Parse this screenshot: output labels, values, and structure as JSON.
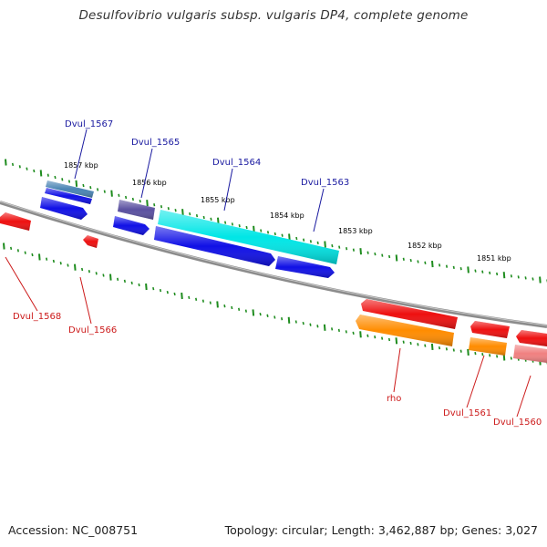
{
  "title": "Desulfovibrio vulgaris subsp. vulgaris DP4, complete genome",
  "footer": {
    "accession": "Accession: NC_008751",
    "topology": "Topology: circular; Length: 3,462,887 bp; Genes: 3,027"
  },
  "scale_labels": [
    "1857 kbp",
    "1856 kbp",
    "1855 kbp",
    "1854 kbp",
    "1853 kbp",
    "1852 kbp",
    "1851 kbp"
  ],
  "colors": {
    "backbone": "#8c8c8c",
    "tick": "#1e8c1e",
    "forward_label": "#1a1aa0",
    "reverse_label": "#cc1a1a",
    "blue": "#1010e6",
    "cyan": "#00e6e6",
    "steel": "#4a84b4",
    "slate": "#5a50a0",
    "red": "#ee1010",
    "orange": "#ff8c00",
    "pink": "#f08080"
  },
  "gene_labels": {
    "forward": [
      "Dvul_1567",
      "Dvul_1565",
      "Dvul_1564",
      "Dvul_1563"
    ],
    "reverse": [
      "Dvul_1568",
      "Dvul_1566",
      "rho",
      "Dvul_1561",
      "Dvul_1560"
    ]
  }
}
